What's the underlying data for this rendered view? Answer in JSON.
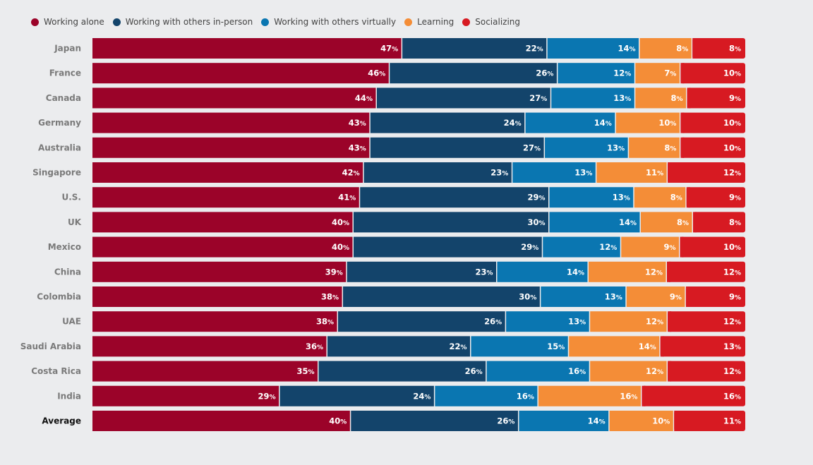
{
  "chart_data": {
    "type": "bar",
    "orientation": "horizontal",
    "stacked": true,
    "title": "",
    "xlabel": "",
    "ylabel": "",
    "xlim": [
      0,
      100
    ],
    "legend_position": "top-left",
    "grid": false,
    "value_suffix": "%",
    "categories": [
      "Japan",
      "France",
      "Canada",
      "Germany",
      "Australia",
      "Singapore",
      "U.S.",
      "UK",
      "Mexico",
      "China",
      "Colombia",
      "UAE",
      "Saudi Arabia",
      "Costa Rica",
      "India",
      "Average"
    ],
    "series": [
      {
        "name": "Working alone",
        "color": "#9b0329",
        "values": [
          47,
          46,
          44,
          43,
          43,
          42,
          41,
          40,
          40,
          39,
          38,
          38,
          36,
          35,
          29,
          40
        ]
      },
      {
        "name": "Working with others in-person",
        "color": "#13446b",
        "values": [
          22,
          26,
          27,
          24,
          27,
          23,
          29,
          30,
          29,
          23,
          30,
          26,
          22,
          26,
          24,
          26
        ]
      },
      {
        "name": "Working with others virtually",
        "color": "#0a76b1",
        "values": [
          14,
          12,
          13,
          14,
          13,
          13,
          13,
          14,
          12,
          14,
          13,
          13,
          15,
          16,
          16,
          14
        ]
      },
      {
        "name": "Learning",
        "color": "#f48d37",
        "values": [
          8,
          7,
          8,
          10,
          8,
          11,
          8,
          8,
          9,
          12,
          9,
          12,
          14,
          12,
          16,
          10
        ]
      },
      {
        "name": "Socializing",
        "color": "#d71a22",
        "values": [
          8,
          10,
          9,
          10,
          10,
          12,
          9,
          8,
          10,
          12,
          9,
          12,
          13,
          12,
          16,
          11
        ]
      }
    ]
  }
}
